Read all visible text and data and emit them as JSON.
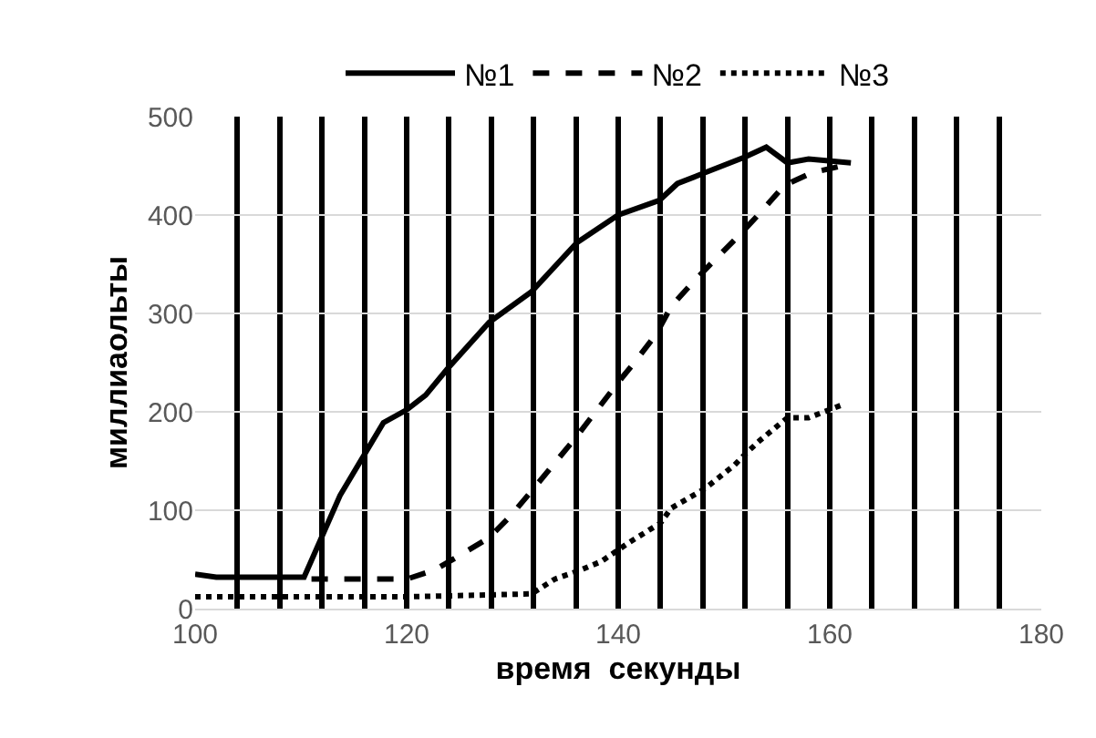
{
  "chart_data": {
    "type": "line",
    "xlabel": "время  секунды",
    "ylabel": "миллиаольты",
    "xlim": [
      100,
      180
    ],
    "ylim": [
      0,
      500
    ],
    "xticks": [
      100,
      {
        "value": 104,
        "label": null
      },
      {
        "value": 108,
        "label": null
      },
      {
        "value": 112,
        "label": null
      },
      {
        "value": 116,
        "label": null
      },
      120,
      {
        "value": 124,
        "label": null
      },
      {
        "value": 128,
        "label": null
      },
      {
        "value": 132,
        "label": null
      },
      {
        "value": 136,
        "label": null
      },
      140,
      {
        "value": 144,
        "label": null
      },
      {
        "value": 148,
        "label": null
      },
      {
        "value": 152,
        "label": null
      },
      {
        "value": 156,
        "label": null
      },
      160,
      {
        "value": 164,
        "label": null
      },
      {
        "value": 168,
        "label": null
      },
      {
        "value": 172,
        "label": null
      },
      {
        "value": 176,
        "label": null
      },
      180
    ],
    "yticks": [
      0,
      100,
      200,
      300,
      400,
      500
    ],
    "grid": true,
    "legend": "top",
    "marker": "none",
    "series": [
      {
        "name": "№1",
        "color": "#000000",
        "line_style": "solid",
        "x": [
          100,
          102,
          110.3,
          113.7,
          117.8,
          120,
          121.8,
          123.8,
          127.8,
          131.8,
          136.1,
          140,
          143.9,
          145.6,
          148.2,
          152,
          154,
          156,
          158,
          162
        ],
        "values": [
          35,
          32,
          32,
          115,
          189,
          202,
          217,
          243,
          291,
          322,
          372,
          400,
          415,
          432,
          443,
          459,
          469,
          453,
          457,
          453
        ]
      },
      {
        "name": "№2",
        "color": "#000000",
        "line_style": "dashed",
        "x": [
          111,
          120,
          122.6,
          125,
          127.8,
          129.8,
          132,
          136,
          140,
          141.6,
          143.6,
          145,
          147,
          149,
          151.4,
          153.4,
          155.7,
          158.3,
          162
        ],
        "values": [
          30,
          30,
          39,
          54,
          72,
          94,
          122,
          174,
          230,
          251,
          279,
          307,
          331,
          353,
          379,
          402,
          430,
          443,
          452
        ]
      },
      {
        "name": "№3",
        "color": "#000000",
        "line_style": "dotted",
        "x": [
          100,
          120,
          128,
          131.8,
          134,
          136.4,
          138.4,
          141,
          144,
          145,
          148.2,
          151,
          152,
          153.4,
          156,
          158,
          161.4
        ],
        "values": [
          12,
          12,
          14,
          15,
          30,
          39,
          48,
          67,
          87,
          102,
          122,
          146,
          157,
          171,
          194,
          194,
          208
        ]
      }
    ]
  }
}
